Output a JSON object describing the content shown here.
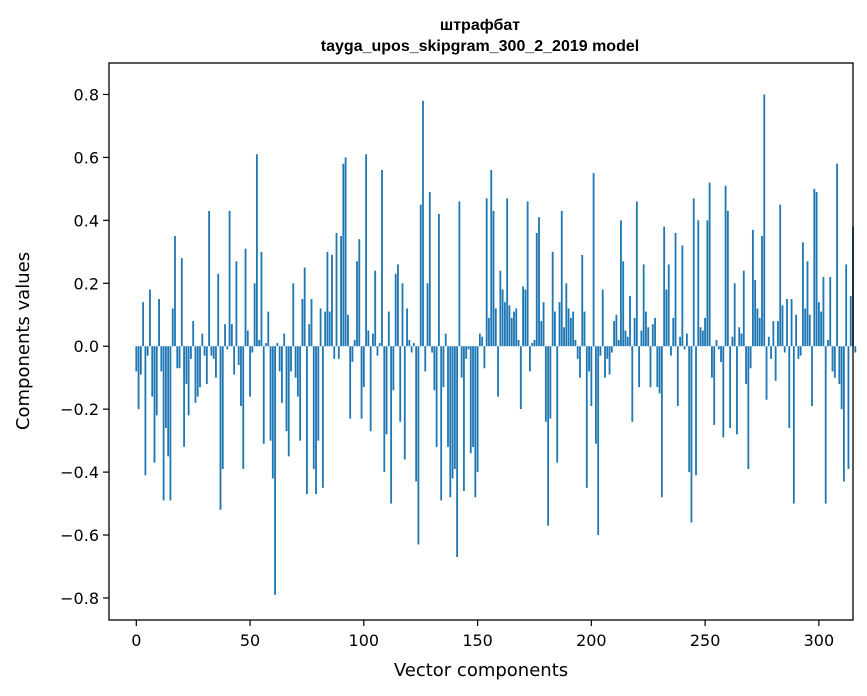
{
  "chart_data": {
    "type": "bar",
    "title": "штрафбат",
    "subtitle": "tayga_upos_skipgram_300_2_2019 model",
    "xlabel": "Vector components",
    "ylabel": "Components values",
    "xlim": [
      -12,
      315
    ],
    "ylim": [
      -0.87,
      0.9
    ],
    "xticks": [
      0,
      50,
      100,
      150,
      200,
      250,
      300
    ],
    "yticks": [
      -0.8,
      -0.6,
      -0.4,
      -0.2,
      0.0,
      0.2,
      0.4,
      0.6,
      0.8
    ],
    "ytick_labels": [
      "−0.8",
      "−0.6",
      "−0.4",
      "−0.2",
      "0.0",
      "0.2",
      "0.4",
      "0.6",
      "0.8"
    ],
    "bar_color": "#1f77b4",
    "grid": false,
    "values": [
      -0.08,
      -0.2,
      -0.09,
      0.14,
      -0.41,
      -0.03,
      0.18,
      -0.16,
      -0.37,
      -0.22,
      0.15,
      -0.08,
      -0.49,
      -0.26,
      -0.35,
      -0.49,
      0.12,
      0.35,
      -0.07,
      -0.07,
      0.28,
      -0.32,
      -0.12,
      -0.22,
      -0.04,
      0.08,
      -0.18,
      -0.16,
      -0.13,
      0.04,
      -0.03,
      -0.12,
      0.43,
      -0.03,
      -0.04,
      -0.1,
      0.23,
      -0.52,
      -0.39,
      0.07,
      -0.01,
      0.43,
      0.07,
      -0.09,
      0.27,
      -0.06,
      -0.19,
      -0.39,
      0.31,
      0.05,
      -0.16,
      -0.02,
      0.2,
      0.61,
      0.02,
      0.3,
      -0.31,
      0.01,
      0.11,
      -0.3,
      -0.42,
      -0.79,
      0.01,
      -0.08,
      -0.18,
      0.04,
      -0.27,
      -0.35,
      -0.08,
      0.2,
      -0.1,
      -0.16,
      -0.3,
      0.15,
      0.25,
      -0.47,
      0.07,
      0.15,
      -0.39,
      -0.47,
      -0.3,
      0.12,
      -0.45,
      0.11,
      0.3,
      0.11,
      0.29,
      -0.04,
      0.36,
      -0.04,
      0.35,
      0.58,
      0.6,
      0.1,
      -0.23,
      -0.05,
      0.02,
      0.27,
      0.34,
      -0.23,
      -0.13,
      0.61,
      0.05,
      -0.27,
      0.04,
      0.24,
      -0.03,
      0.01,
      0.56,
      -0.4,
      -0.28,
      0.11,
      -0.5,
      -0.14,
      0.23,
      0.26,
      -0.24,
      0.2,
      -0.36,
      0.12,
      0.02,
      -0.02,
      0.01,
      -0.43,
      -0.63,
      0.45,
      0.78,
      -0.08,
      0.2,
      0.49,
      -0.02,
      -0.14,
      -0.32,
      0.42,
      -0.49,
      -0.13,
      0.04,
      -0.32,
      -0.48,
      -0.42,
      -0.39,
      -0.67,
      0.46,
      -0.1,
      -0.46,
      -0.04,
      -0.01,
      -0.34,
      -0.32,
      -0.48,
      -0.4,
      0.04,
      0.03,
      -0.07,
      0.47,
      0.09,
      0.56,
      0.43,
      0.12,
      -0.16,
      0.24,
      0.18,
      0.14,
      0.47,
      0.13,
      0.09,
      0.11,
      0.12,
      0.02,
      -0.2,
      0.19,
      0.18,
      0.46,
      -0.08,
      0.01,
      0.02,
      0.36,
      0.41,
      0.08,
      0.14,
      -0.24,
      -0.57,
      -0.23,
      0.3,
      0.11,
      -0.37,
      0.14,
      0.43,
      0.06,
      0.2,
      0.12,
      0.09,
      0.11,
      0.02,
      -0.04,
      -0.1,
      0.29,
      0.11,
      -0.45,
      -0.08,
      -0.19,
      0.55,
      -0.31,
      -0.6,
      -0.03,
      0.18,
      -0.1,
      -0.04,
      -0.09,
      -0.02,
      0.08,
      0.1,
      0.02,
      0.4,
      0.27,
      0.05,
      0.03,
      0.16,
      -0.24,
      0.09,
      0.46,
      -0.13,
      0.05,
      0.26,
      0.11,
      0.06,
      -0.13,
      0.07,
      0.09,
      -0.13,
      -0.15,
      -0.48,
      0.38,
      0.18,
      0.26,
      -0.03,
      0.09,
      0.36,
      -0.19,
      0.03,
      0.32,
      -0.01,
      0.04,
      -0.4,
      -0.56,
      0.47,
      -0.41,
      0.4,
      0.06,
      0.05,
      0.09,
      0.4,
      0.52,
      -0.1,
      -0.25,
      0.02,
      -0.01,
      -0.05,
      -0.29,
      0.51,
      0.43,
      -0.26,
      0.03,
      0.2,
      -0.28,
      0.06,
      0.04,
      0.24,
      -0.12,
      -0.39,
      -0.07,
      0.37,
      0.21,
      0.12,
      0.09,
      0.35,
      0.8,
      -0.17,
      0.03,
      -0.04,
      0.08,
      -0.11,
      0.08,
      0.45,
      0.13,
      -0.02,
      0.15,
      -0.26,
      0.15,
      -0.5,
      0.1,
      -0.04,
      -0.03,
      0.33,
      0.12,
      0.27,
      0.1,
      -0.19,
      0.5,
      0.49,
      0.14,
      0.11,
      0.22,
      -0.5,
      0.02,
      0.22,
      -0.08,
      -0.1,
      0.58,
      -0.12,
      -0.2,
      -0.43,
      0.26,
      -0.39,
      0.16,
      0.38,
      -0.02
    ]
  }
}
